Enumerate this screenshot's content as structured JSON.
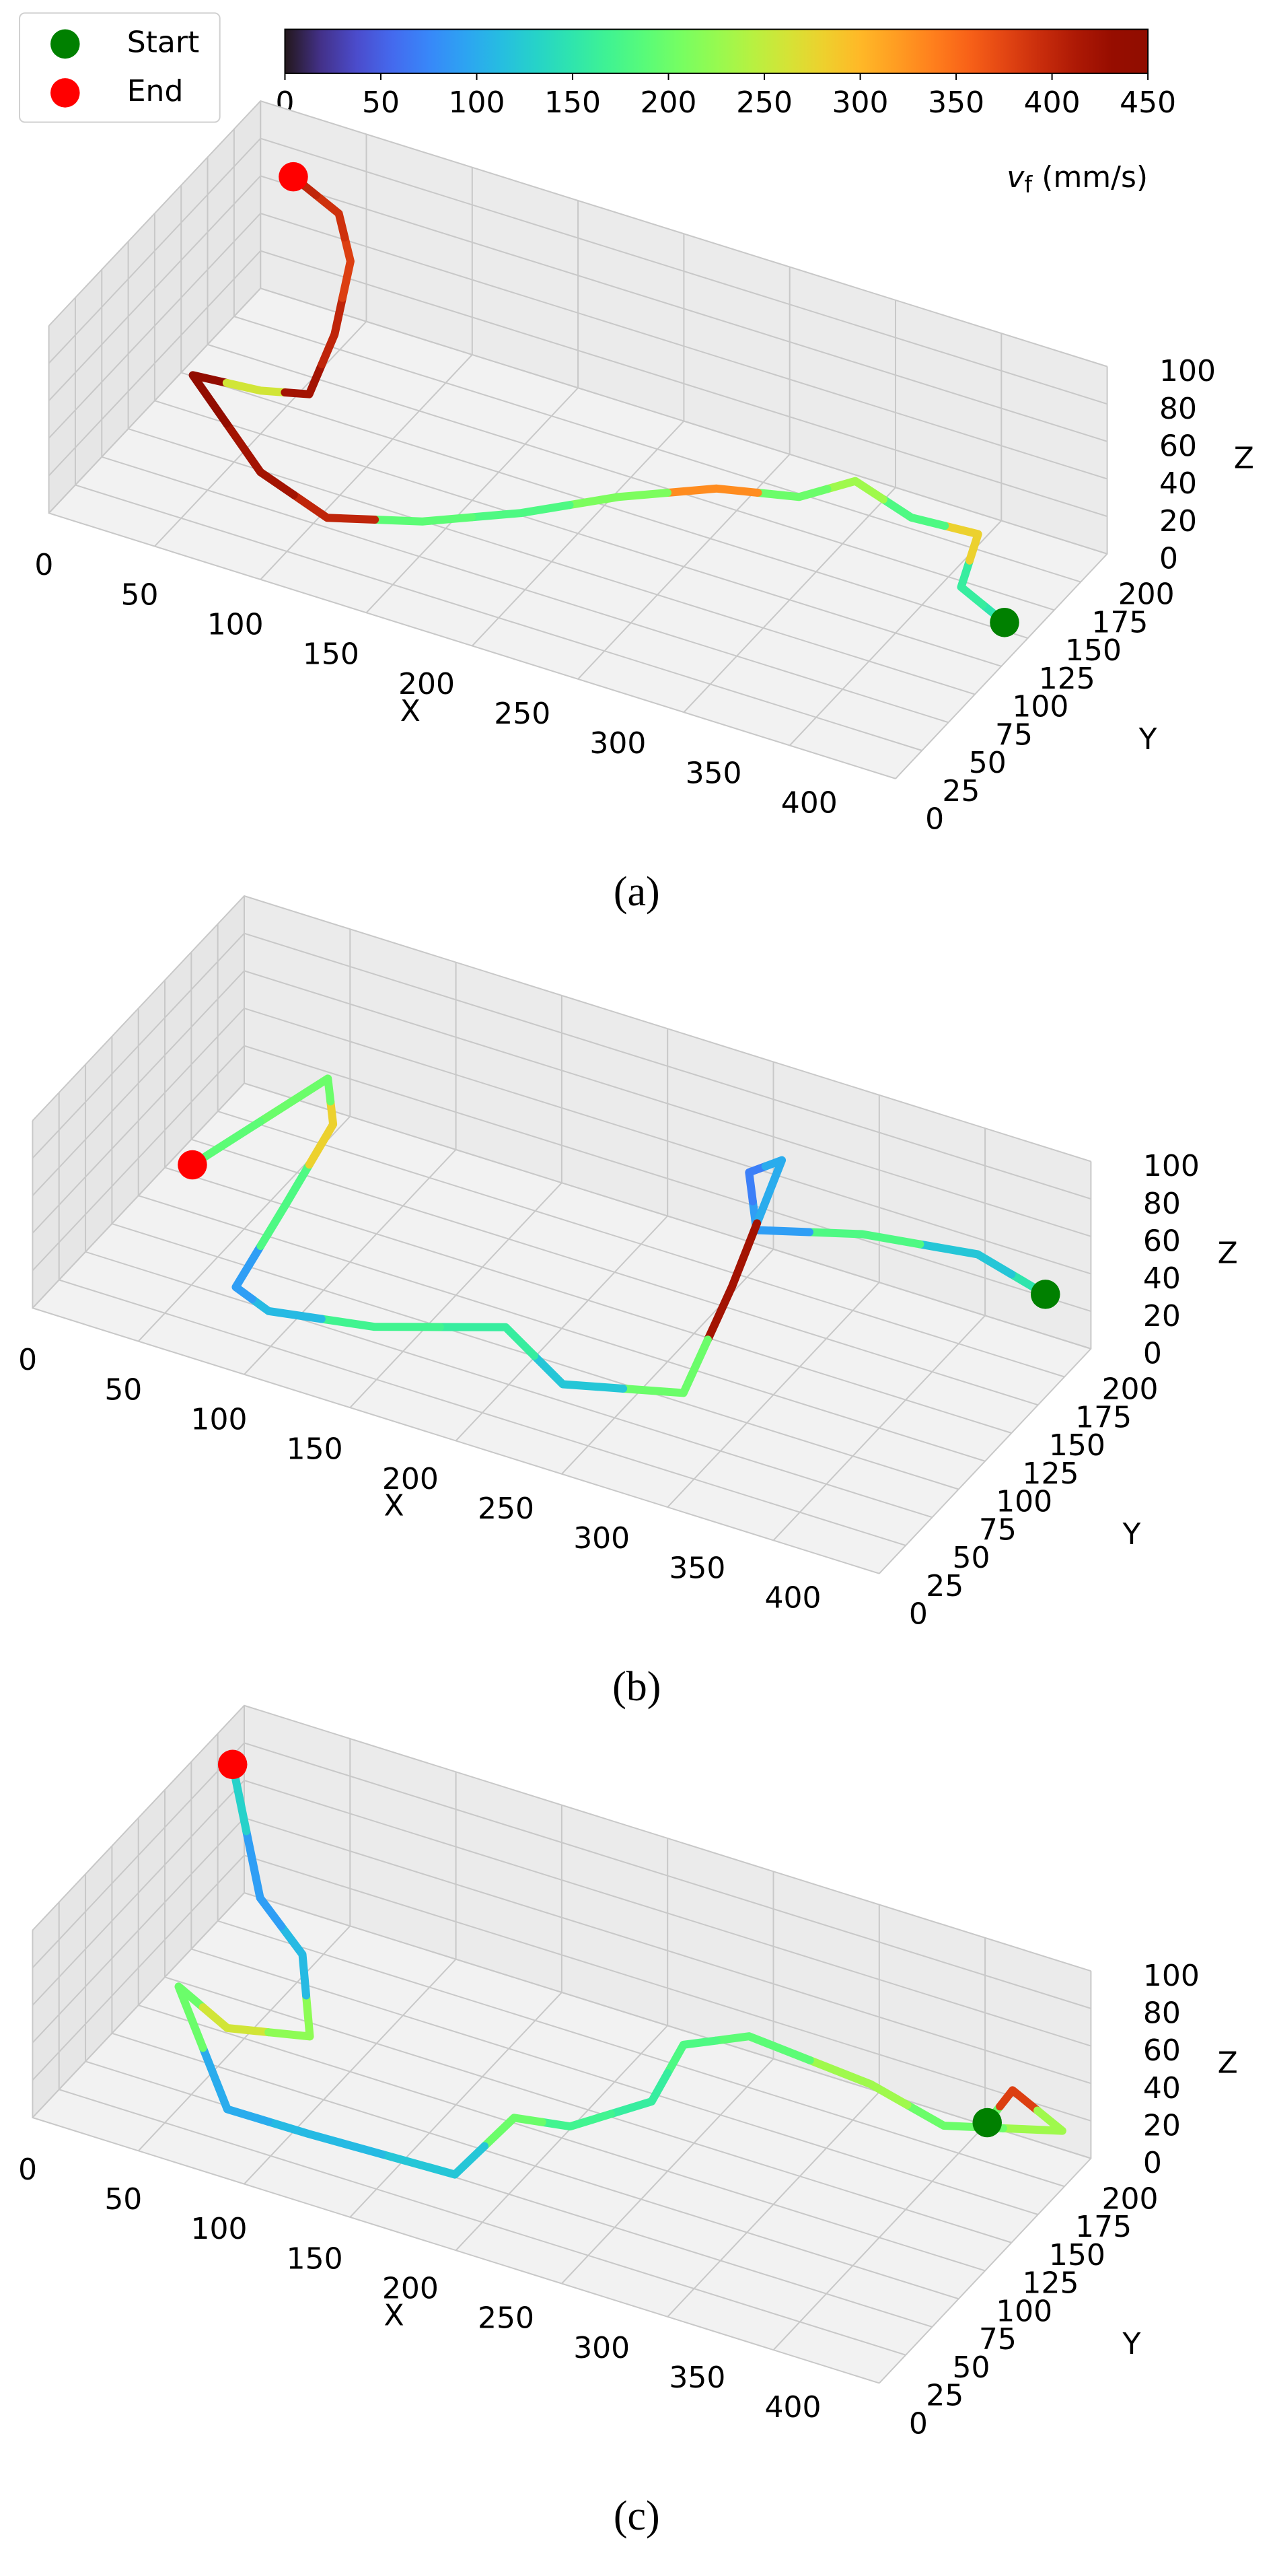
{
  "colorbar": {
    "label": {
      "symbol": "v",
      "subscript": "f",
      "unit": "(mm/s)"
    },
    "colormap": "turbo",
    "lim": [
      0,
      450
    ],
    "ticks": [
      0,
      50,
      100,
      150,
      200,
      250,
      300,
      350,
      400,
      450
    ]
  },
  "legend": {
    "loc": "upper left",
    "entries": [
      {
        "name": "Start",
        "color": "#008000"
      },
      {
        "name": "End",
        "color": "#ff0000"
      }
    ]
  },
  "chart_data": [
    {
      "type": "line3d",
      "caption": "(a)",
      "xlabel": "X",
      "ylabel": "Y",
      "zlabel": "Z",
      "xlim": [
        0,
        400
      ],
      "xticks": [
        0,
        50,
        100,
        150,
        200,
        250,
        300,
        350,
        400
      ],
      "ylim": [
        0,
        200
      ],
      "yticks": [
        0,
        25,
        50,
        75,
        100,
        125,
        150,
        175,
        200
      ],
      "zlim": [
        0,
        100
      ],
      "zticks": [
        0,
        20,
        40,
        60,
        80,
        100
      ],
      "x": [
        399,
        371,
        359,
        329,
        296,
        281,
        248,
        215,
        185,
        152,
        116,
        76,
        18,
        48,
        67,
        75,
        75,
        64,
        38
      ],
      "y": [
        105,
        120,
        160,
        157,
        170,
        147,
        135,
        108,
        76,
        49,
        31,
        48,
        100,
        104,
        112,
        120,
        135,
        146,
        155
      ],
      "z": [
        20,
        20,
        20,
        20,
        20,
        20,
        20,
        20,
        20,
        20,
        20,
        20,
        20,
        20,
        20,
        50,
        80,
        95,
        100
      ],
      "values": [
        150,
        160,
        280,
        180,
        230,
        200,
        330,
        210,
        180,
        190,
        400,
        420,
        440,
        260,
        420,
        400,
        380,
        390,
        400
      ]
    },
    {
      "type": "line3d",
      "caption": "(b)",
      "xlabel": "X",
      "ylabel": "Y",
      "zlabel": "Z",
      "xlim": [
        0,
        400
      ],
      "xticks": [
        0,
        50,
        100,
        150,
        200,
        250,
        300,
        350,
        400
      ],
      "ylim": [
        0,
        200
      ],
      "yticks": [
        0,
        25,
        50,
        75,
        100,
        125,
        150,
        175,
        200
      ],
      "zlim": [
        0,
        100
      ],
      "zticks": [
        0,
        20,
        40,
        60,
        80,
        100
      ],
      "x": [
        384,
        352,
        303,
        263,
        263,
        274,
        267,
        273,
        226,
        192,
        144,
        100,
        83,
        89,
        98,
        90,
        67
      ],
      "y": [
        189,
        189,
        178,
        158,
        151,
        160,
        127,
        69,
        49,
        63,
        35,
        23,
        26,
        61,
        88,
        99,
        17
      ],
      "z": [
        30,
        40,
        40,
        40,
        75,
        80,
        30,
        10,
        10,
        20,
        20,
        20,
        25,
        50,
        80,
        95,
        90
      ],
      "values": [
        150,
        120,
        180,
        90,
        70,
        100,
        420,
        200,
        120,
        160,
        170,
        110,
        90,
        180,
        280,
        200,
        190
      ]
    },
    {
      "type": "line3d",
      "caption": "(c)",
      "xlabel": "X",
      "ylabel": "Y",
      "zlabel": "Z",
      "xlim": [
        0,
        400
      ],
      "xticks": [
        0,
        50,
        100,
        150,
        200,
        250,
        300,
        350,
        400
      ],
      "ylim": [
        0,
        200
      ],
      "yticks": [
        0,
        25,
        50,
        75,
        100,
        125,
        150,
        175,
        200
      ],
      "zlim": [
        0,
        100
      ],
      "zticks": [
        0,
        20,
        40,
        60,
        80,
        100
      ],
      "x": [
        366,
        377,
        393,
        348,
        320,
        272,
        251,
        246,
        212,
        195,
        180,
        116,
        81,
        34,
        66,
        99,
        81,
        59,
        16
      ],
      "y": [
        170,
        172,
        187,
        165,
        152,
        133,
        113,
        93,
        84,
        65,
        39,
        29,
        22,
        70,
        52,
        64,
        93,
        97,
        157
      ],
      "z": [
        25,
        45,
        20,
        20,
        40,
        60,
        60,
        40,
        20,
        30,
        10,
        15,
        20,
        40,
        40,
        40,
        60,
        80,
        100
      ],
      "values": [
        200,
        380,
        230,
        200,
        230,
        190,
        180,
        160,
        170,
        200,
        120,
        110,
        100,
        200,
        260,
        220,
        110,
        90,
        130
      ]
    }
  ]
}
